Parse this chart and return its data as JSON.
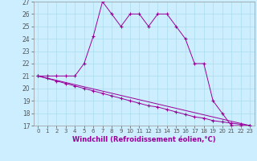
{
  "xlabel": "Windchill (Refroidissement éolien,°C)",
  "line1_x": [
    0,
    1,
    2,
    3,
    4,
    5,
    6,
    7,
    8,
    9,
    10,
    11,
    12,
    13,
    14,
    15,
    16,
    17,
    18,
    19,
    20,
    21,
    22,
    23
  ],
  "line1_y": [
    21.0,
    21.0,
    21.0,
    21.0,
    21.0,
    22.0,
    24.2,
    27.0,
    26.0,
    25.0,
    26.0,
    26.0,
    25.0,
    26.0,
    26.0,
    25.0,
    24.0,
    22.0,
    22.0,
    19.0,
    18.0,
    17.0,
    17.0,
    17.0
  ],
  "line2_x": [
    0,
    1,
    2,
    3,
    4,
    5,
    6,
    7,
    8,
    9,
    10,
    11,
    12,
    13,
    14,
    15,
    16,
    17,
    18,
    19,
    20,
    21,
    22,
    23
  ],
  "line2_y": [
    21.0,
    20.8,
    20.6,
    20.4,
    20.2,
    20.0,
    19.8,
    19.6,
    19.4,
    19.2,
    19.0,
    18.8,
    18.6,
    18.5,
    18.3,
    18.1,
    17.9,
    17.7,
    17.6,
    17.4,
    17.3,
    17.2,
    17.1,
    17.0
  ],
  "line3_x": [
    0,
    23
  ],
  "line3_y": [
    21.0,
    17.0
  ],
  "color": "#990099",
  "bg_color": "#cceeff",
  "grid_color": "#aaddee",
  "xlim_min": -0.5,
  "xlim_max": 23.5,
  "ylim_min": 17,
  "ylim_max": 27,
  "yticks": [
    17,
    18,
    19,
    20,
    21,
    22,
    23,
    24,
    25,
    26,
    27
  ],
  "xticks": [
    0,
    1,
    2,
    3,
    4,
    5,
    6,
    7,
    8,
    9,
    10,
    11,
    12,
    13,
    14,
    15,
    16,
    17,
    18,
    19,
    20,
    21,
    22,
    23
  ],
  "marker": "+",
  "tick_fontsize": 5.5,
  "xlabel_fontsize": 6.0
}
